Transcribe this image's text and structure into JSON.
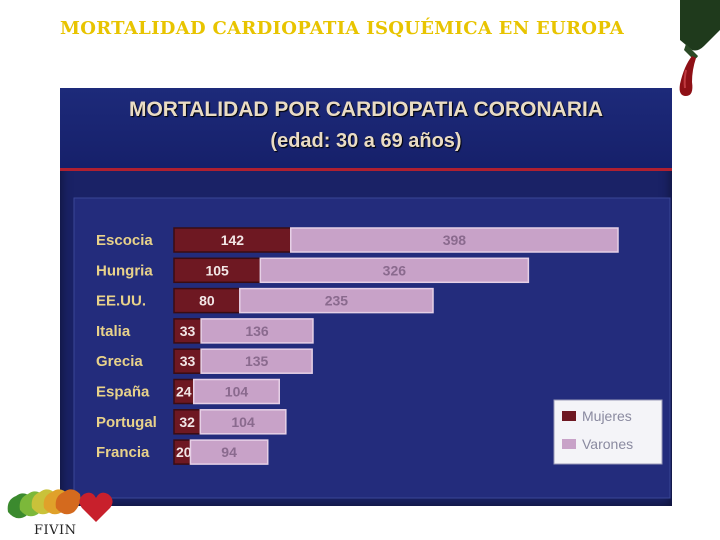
{
  "slide": {
    "title": "MORTALIDAD CARDIOPATIA ISQUÉMICA EN EUROPA",
    "logo_text": "FIVIN"
  },
  "colors": {
    "title": "#e8c400",
    "photo_bg": "#1a2266",
    "mujeres": "#6e1822",
    "varones": "#c8a2c8",
    "country_label": "#e8d28a"
  },
  "chart_data": {
    "type": "bar",
    "orientation": "horizontal",
    "stacked": true,
    "title": "MORTALIDAD POR CARDIOPATIA CORONARIA",
    "subtitle": "(edad: 30 a 69 años)",
    "categories": [
      "Escocia",
      "Hungria",
      "EE.UU.",
      "Italia",
      "Grecia",
      "España",
      "Portugal",
      "Francia"
    ],
    "series": [
      {
        "name": "Mujeres",
        "color": "#6e1822",
        "values": [
          142,
          105,
          80,
          33,
          33,
          24,
          32,
          20
        ]
      },
      {
        "name": "Varones",
        "color": "#c8a2c8",
        "values": [
          398,
          326,
          235,
          136,
          135,
          104,
          104,
          94
        ]
      }
    ],
    "legend": "bottom-right",
    "grid": false
  }
}
